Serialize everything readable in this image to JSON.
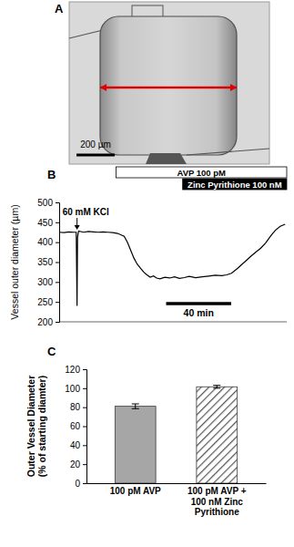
{
  "chart_data": [
    {
      "type": "image",
      "panel_label": "A",
      "scale_bar": {
        "value": 200,
        "label": "200 µm"
      },
      "color": "#e00000"
    },
    {
      "type": "line",
      "panel_label": "B",
      "y_label": "Vessel outer diameter (µm)",
      "x": [
        0,
        3,
        6,
        9,
        10.5,
        11,
        11.3,
        11.6,
        12,
        15,
        18,
        21,
        24,
        27,
        30,
        33,
        36,
        40,
        42,
        44,
        46,
        48,
        50,
        52,
        54,
        56,
        58,
        60,
        62,
        65,
        68,
        71,
        74,
        77,
        80,
        84,
        88,
        92,
        96,
        100,
        103,
        106,
        110,
        114,
        118,
        121,
        124,
        127,
        130,
        133,
        136,
        139
      ],
      "values": [
        425,
        424,
        426,
        425,
        425,
        240,
        412,
        420,
        428,
        425,
        427,
        426,
        425,
        426,
        425,
        424,
        422,
        415,
        400,
        380,
        360,
        345,
        335,
        325,
        318,
        312,
        315,
        310,
        308,
        312,
        310,
        313,
        309,
        311,
        314,
        311,
        313,
        315,
        317,
        316,
        318,
        322,
        335,
        350,
        365,
        375,
        385,
        398,
        415,
        430,
        440,
        445
      ],
      "xlim": [
        0,
        140
      ],
      "ylim": [
        200,
        500
      ],
      "yticks": [
        200,
        250,
        300,
        350,
        400,
        450,
        500
      ],
      "tick_labels": "y",
      "color": "#000000",
      "annotations": [
        {
          "text": "60 mM KCl",
          "x": 11
        }
      ],
      "treatments": [
        {
          "text": "AVP 100 pM",
          "start": 35,
          "end": 140,
          "color": "#ffffff"
        },
        {
          "text": "Zinc Pyrithione 100 nM",
          "start": 76,
          "end": 140,
          "color": "#000000"
        }
      ],
      "scale_bar": {
        "value": 40,
        "label": "40 min"
      }
    },
    {
      "type": "bar",
      "panel_label": "C",
      "y_label": "Outer Vessel Diameter\n(% of starting diamter)",
      "categories": [
        "100 pM AVP",
        "100 pM AVP + 100 nM Zinc Pyrithione"
      ],
      "values": [
        81,
        101.5
      ],
      "errors": [
        2.5,
        1.5
      ],
      "colors": [
        "#a6a6a6",
        "#595959"
      ],
      "ylim": [
        0,
        120
      ],
      "yticks": [
        0,
        20,
        40,
        60,
        80,
        100,
        120
      ]
    }
  ]
}
